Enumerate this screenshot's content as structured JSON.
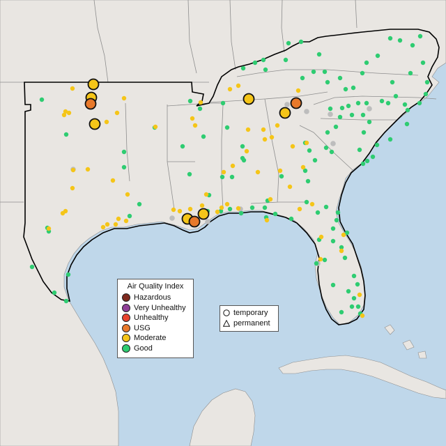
{
  "map": {
    "colors": {
      "ocean": "#bfd7ea",
      "land": "#e9e6e2",
      "land_outside": "#ebe8e4",
      "border": "#8d8d8d",
      "region_outline": "#000000",
      "caribbean_land": "#e9e6e2"
    }
  },
  "legend_aqi": {
    "title": "Air Quality Index",
    "items": [
      {
        "label": "Hazardous",
        "color": "#7e2a1f"
      },
      {
        "label": "Very Unhealthy",
        "color": "#8f3f97"
      },
      {
        "label": "Unhealthy",
        "color": "#e8432d"
      },
      {
        "label": "USG",
        "color": "#e8792b"
      },
      {
        "label": "Moderate",
        "color": "#f5c518"
      },
      {
        "label": "Good",
        "color": "#2ecc71"
      }
    ]
  },
  "legend_shape": {
    "items": [
      {
        "label": "temporary",
        "icon": "circle-icon"
      },
      {
        "label": "permanent",
        "icon": "triangle-icon"
      }
    ]
  },
  "markers": {
    "large": [
      {
        "category": "Moderate"
      },
      {
        "category": "Moderate"
      },
      {
        "category": "USG"
      },
      {
        "category": "Moderate"
      },
      {
        "category": "Moderate"
      },
      {
        "category": "Moderate"
      },
      {
        "category": "USG"
      },
      {
        "category": "Moderate"
      },
      {
        "category": "USG"
      },
      {
        "category": "Moderate"
      }
    ]
  }
}
